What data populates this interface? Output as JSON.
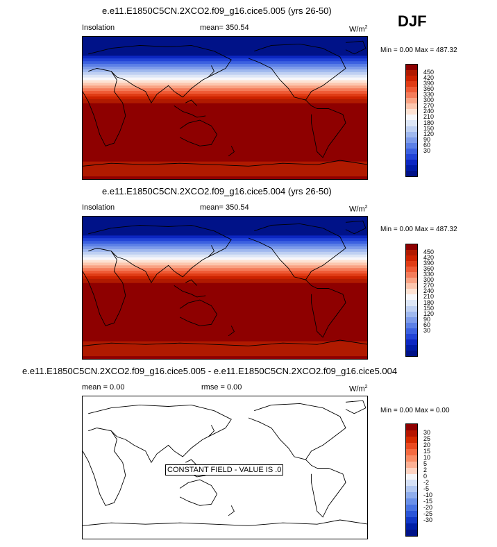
{
  "season": "DJF",
  "panels": [
    {
      "title": "e.e11.E1850C5CN.2XCO2.f09_g16.cice5.005 (yrs 26-50)",
      "left_label": "Insolation",
      "center_label": "mean= 350.54",
      "units": "W/m",
      "units_sup": "2",
      "minmax": "Min =   0.00 Max = 487.32"
    },
    {
      "title": "e.e11.E1850C5CN.2XCO2.f09_g16.cice5.004 (yrs 26-50)",
      "left_label": "Insolation",
      "center_label": "mean= 350.54",
      "units": "W/m",
      "units_sup": "2",
      "minmax": "Min =   0.00 Max = 487.32"
    },
    {
      "title": "e.e11.E1850C5CN.2XCO2.f09_g16.cice5.005 - e.e11.E1850C5CN.2XCO2.f09_g16.cice5.004",
      "left_label": "mean =   0.00",
      "center_label": "rmse =   0.00",
      "units": "W/m",
      "units_sup": "2",
      "minmax": "Min =   0.00 Max =   0.00",
      "note": "CONSTANT FIELD - VALUE IS .0"
    }
  ],
  "chart_data": [
    {
      "type": "heatmap",
      "title": "e.e11.E1850C5CN.2XCO2.f09_g16.cice5.005 (yrs 26-50)",
      "variable": "Insolation",
      "units": "W/m2",
      "mean": 350.54,
      "min": 0.0,
      "max": 487.32,
      "colorbar_levels": [
        "450",
        "420",
        "390",
        "360",
        "330",
        "300",
        "270",
        "240",
        "210",
        "180",
        "150",
        "120",
        "90",
        "60",
        "30"
      ],
      "colorbar_colors": [
        "#8e0000",
        "#b01a00",
        "#cc2200",
        "#e03c15",
        "#ee5a35",
        "#f47c5a",
        "#f9a283",
        "#fcc6ae",
        "#fde2d3",
        "#f7f7fa",
        "#dde6f6",
        "#bfd0f2",
        "#9fb8ee",
        "#7e9cea",
        "#5c80e6",
        "#3c61e0",
        "#2244d6",
        "#0c27c2",
        "#001ba6",
        "#001288"
      ]
    },
    {
      "type": "heatmap",
      "title": "e.e11.E1850C5CN.2XCO2.f09_g16.cice5.004 (yrs 26-50)",
      "variable": "Insolation",
      "units": "W/m2",
      "mean": 350.54,
      "min": 0.0,
      "max": 487.32,
      "colorbar_levels": [
        "450",
        "420",
        "390",
        "360",
        "330",
        "300",
        "270",
        "240",
        "210",
        "180",
        "150",
        "120",
        "90",
        "60",
        "30"
      ]
    },
    {
      "type": "heatmap",
      "title": "e.e11.E1850C5CN.2XCO2.f09_g16.cice5.005 - e.e11.E1850C5CN.2XCO2.f09_g16.cice5.004",
      "units": "W/m2",
      "mean": 0.0,
      "rmse": 0.0,
      "min": 0.0,
      "max": 0.0,
      "colorbar_levels": [
        "30",
        "25",
        "20",
        "15",
        "10",
        "5",
        "2",
        "0",
        "-2",
        "-5",
        "-10",
        "-15",
        "-20",
        "-25",
        "-30"
      ],
      "colorbar_colors": [
        "#8e0000",
        "#b51500",
        "#d42a00",
        "#ea4a20",
        "#f46a40",
        "#f98c65",
        "#fcb094",
        "#fdd3c2",
        "#f5f5f8",
        "#d5e0f5",
        "#b2c7f0",
        "#8fadec",
        "#6a90e8",
        "#4873e2",
        "#2a55d8",
        "#1037c6",
        "#001fa6",
        "#001288"
      ]
    }
  ]
}
